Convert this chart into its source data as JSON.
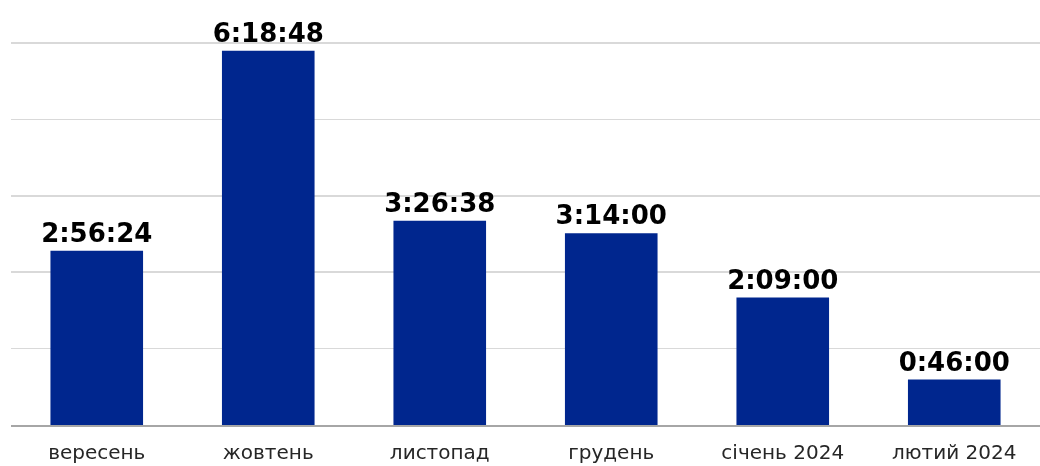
{
  "chart_data": {
    "type": "bar",
    "categories": [
      "вересень",
      "жовтень",
      "листопад",
      "грудень",
      "січень 2024",
      "лютий 2024"
    ],
    "values": [
      10584,
      22728,
      12398,
      11640,
      7740,
      2760
    ],
    "value_labels": [
      "2:56:24",
      "6:18:48",
      "3:26:38",
      "3:14:00",
      "2:09:00",
      "0:46:00"
    ],
    "color": "#00268e",
    "yticks": [
      {
        "value": 0,
        "label": null
      },
      {
        "value": 4640,
        "label": null
      },
      {
        "value": 9280,
        "label": null
      },
      {
        "value": 13920,
        "label": null
      },
      {
        "value": 18560,
        "label": null
      },
      {
        "value": 23200,
        "label": null
      }
    ],
    "grid": "y",
    "tick_labels": "x"
  }
}
